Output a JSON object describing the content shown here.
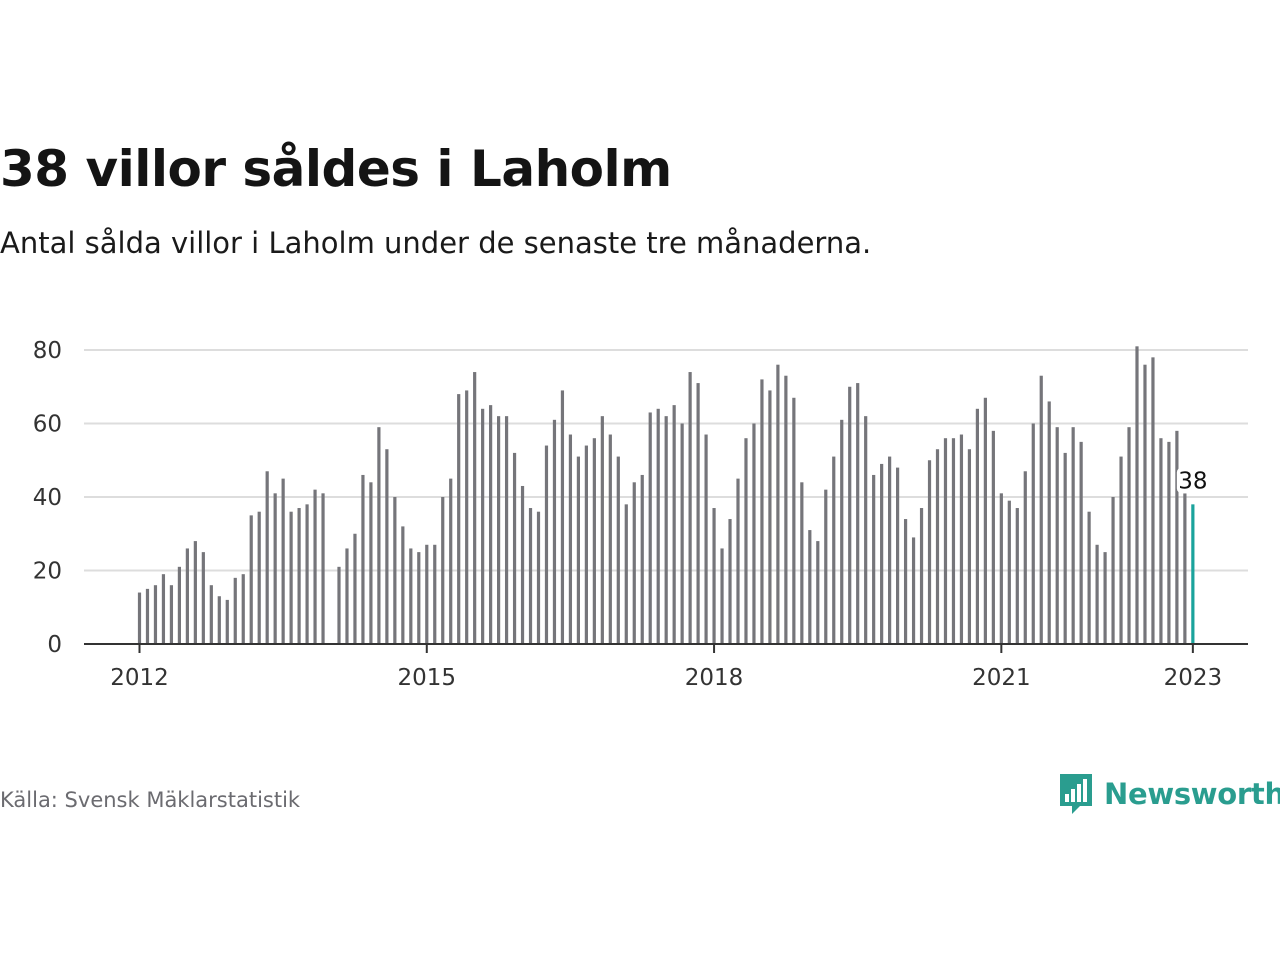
{
  "title": "38 villor såldes i Laholm",
  "subtitle": "Antal sålda villor i Laholm under de senaste tre månaderna.",
  "source": "Källa: Svensk Mäklarstatistik",
  "brand": "Newsworthy",
  "colors": {
    "bar": "#75757a",
    "highlight": "#1ba39c",
    "grid": "#dddddd",
    "axis": "#333333",
    "brand": "#2a9d8f"
  },
  "icons": {
    "brand_logo": "newsworthy-chart-bubble-icon"
  },
  "chart_data": {
    "type": "bar",
    "title": "38 villor såldes i Laholm",
    "xlabel": "",
    "ylabel": "",
    "ylim": [
      0,
      80
    ],
    "yticks": [
      0,
      20,
      40,
      60,
      80
    ],
    "xticks": [
      "2012",
      "2015",
      "2018",
      "2021",
      "2023"
    ],
    "grid": true,
    "start": "2012-01",
    "values": [
      14,
      15,
      16,
      19,
      16,
      21,
      26,
      28,
      25,
      16,
      13,
      12,
      18,
      19,
      35,
      36,
      47,
      41,
      45,
      36,
      37,
      38,
      42,
      41,
      null,
      21,
      26,
      30,
      46,
      44,
      59,
      53,
      40,
      32,
      26,
      25,
      27,
      27,
      40,
      45,
      68,
      69,
      74,
      64,
      65,
      62,
      62,
      52,
      43,
      37,
      36,
      54,
      61,
      69,
      57,
      51,
      54,
      56,
      62,
      57,
      51,
      38,
      44,
      46,
      63,
      64,
      62,
      65,
      60,
      74,
      71,
      57,
      37,
      26,
      34,
      45,
      56,
      60,
      72,
      69,
      76,
      73,
      67,
      44,
      31,
      28,
      42,
      51,
      61,
      70,
      71,
      62,
      46,
      49,
      51,
      48,
      34,
      29,
      37,
      50,
      53,
      56,
      56,
      57,
      53,
      64,
      67,
      58,
      41,
      39,
      37,
      47,
      60,
      73,
      66,
      59,
      52,
      59,
      55,
      36,
      27,
      25,
      40,
      51,
      59,
      81,
      76,
      78,
      56,
      55,
      58,
      41,
      38
    ],
    "highlight": {
      "label": "38",
      "value": 38
    }
  }
}
